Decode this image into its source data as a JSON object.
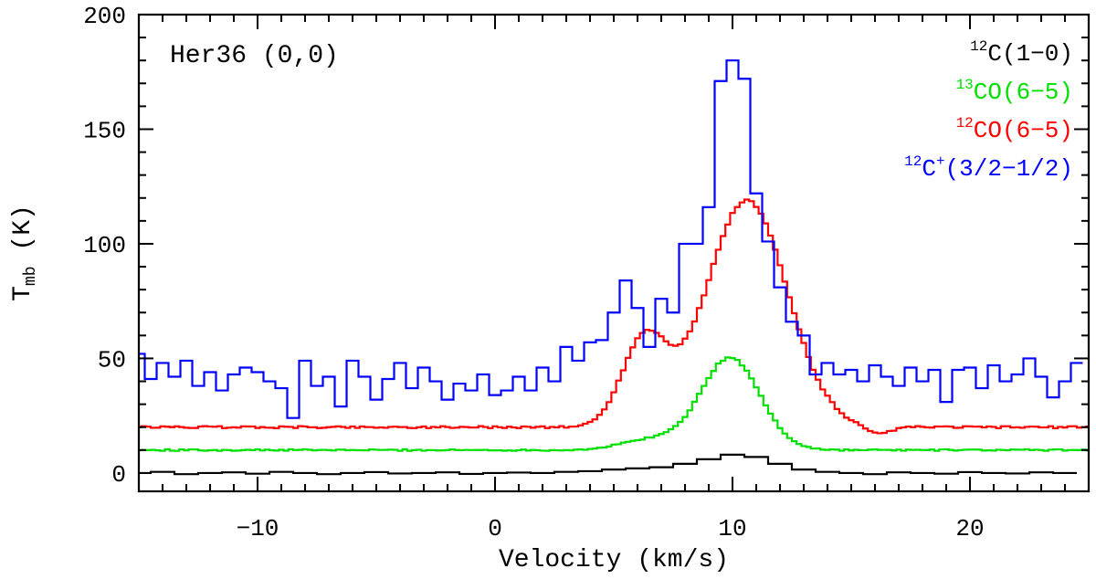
{
  "chart_data": {
    "type": "line",
    "step": true,
    "xlabel": "Velocity (km/s)",
    "ylabel_main": "T",
    "ylabel_sub": "mb",
    "ylabel_unit": " (K)",
    "annotation": "Her36 (0,0)",
    "xlim": [
      -15,
      25
    ],
    "ylim": [
      -8,
      200
    ],
    "x_ticks": [
      -10,
      0,
      10,
      20
    ],
    "x_tick_labels": [
      "−10",
      "0",
      "10",
      "20"
    ],
    "y_ticks": [
      0,
      50,
      100,
      150,
      200
    ],
    "y_tick_labels": [
      "0",
      "50",
      "100",
      "150",
      "200"
    ],
    "legend_placement": "top-right",
    "series": [
      {
        "name": "C(1−0)",
        "sup": "12",
        "color": "#000000",
        "step": 1.0,
        "x": [
          -15,
          -14,
          -13,
          -12,
          -11,
          -10,
          -9,
          -8,
          -7,
          -6,
          -5,
          -4,
          -3,
          -2,
          -1,
          0,
          1,
          2,
          3,
          4,
          5,
          6,
          7,
          8,
          9,
          10,
          11,
          12,
          13,
          14,
          15,
          16,
          17,
          18,
          19,
          20,
          21,
          22,
          23,
          24
        ],
        "y": [
          0,
          0.5,
          -0.5,
          0,
          0.3,
          -0.3,
          0.5,
          0,
          -0.5,
          0,
          0.4,
          -0.2,
          0,
          0.3,
          -0.4,
          0,
          0.2,
          0,
          0.5,
          0.8,
          1.5,
          2,
          2.5,
          4,
          6,
          8,
          7,
          4,
          1.5,
          0.5,
          0,
          -0.5,
          0.3,
          0,
          -0.3,
          0.4,
          0,
          -0.2,
          0.3,
          0
        ]
      },
      {
        "name": "CO(6−5)",
        "sup": "13",
        "color": "#00e000",
        "step": 0.2,
        "peaks": [
          {
            "center": 9.9,
            "amp": 40.3,
            "sigma": 1.25
          },
          {
            "center": 6.5,
            "amp": 4.5,
            "sigma": 1.2
          }
        ],
        "baseline": 10,
        "noise": 0.35
      },
      {
        "name": "CO(6−5)",
        "sup": "12",
        "color": "#ff0000",
        "step": 0.2,
        "peaks": [
          {
            "center": 10.6,
            "amp": 99,
            "sigma": 1.7
          },
          {
            "center": 6.3,
            "amp": 38,
            "sigma": 0.95
          },
          {
            "center": 16.1,
            "amp": -3.5,
            "sigma": 0.5
          }
        ],
        "baseline": 20,
        "noise": 0.45
      },
      {
        "name": "C+(3/2−1/2)",
        "sup": "12",
        "sup2": "+",
        "color": "#0000ff",
        "step": 0.5,
        "x": [
          -15,
          -14.5,
          -14,
          -13.5,
          -13,
          -12.5,
          -12,
          -11.5,
          -11,
          -10.5,
          -10,
          -9.5,
          -9,
          -8.5,
          -8,
          -7.5,
          -7,
          -6.5,
          -6,
          -5.5,
          -5,
          -4.5,
          -4,
          -3.5,
          -3,
          -2.5,
          -2,
          -1.5,
          -1,
          -0.5,
          0,
          0.5,
          1,
          1.5,
          2,
          2.5,
          3,
          3.5,
          4,
          4.5,
          5,
          5.5,
          6,
          6.5,
          7,
          7.5,
          8,
          8.5,
          9,
          9.5,
          10,
          10.5,
          11,
          11.5,
          12,
          12.5,
          13,
          13.5,
          14,
          14.5,
          15,
          15.5,
          16,
          16.5,
          17,
          17.5,
          18,
          18.5,
          19,
          19.5,
          20,
          20.5,
          21,
          21.5,
          22,
          22.5,
          23,
          23.5,
          24,
          24.5
        ],
        "y": [
          52,
          41,
          48,
          42,
          49,
          38,
          44,
          36,
          43,
          46,
          44,
          40,
          37,
          24,
          49,
          38,
          42,
          29,
          49,
          42,
          32,
          41,
          48,
          37,
          46,
          40,
          32,
          39,
          36,
          43,
          34,
          36,
          42,
          36,
          46,
          40,
          55,
          49,
          57,
          58,
          70,
          84,
          72,
          55,
          76,
          70,
          100,
          100,
          116,
          171,
          180,
          172,
          122,
          101,
          81,
          66,
          60,
          43,
          48,
          43,
          45,
          40,
          47,
          42,
          38,
          46,
          40,
          45,
          31,
          45,
          46,
          37,
          47,
          40,
          43,
          50,
          42,
          33,
          40,
          48
        ]
      }
    ]
  }
}
